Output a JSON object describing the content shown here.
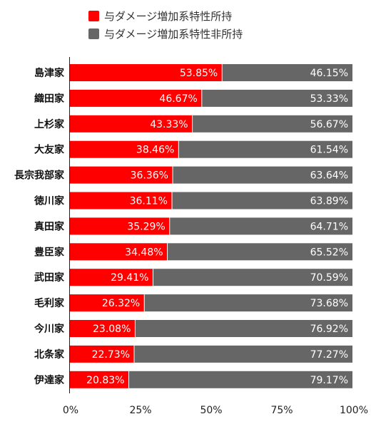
{
  "chart_data": {
    "type": "bar",
    "orientation": "horizontal",
    "stacked": true,
    "normalized": true,
    "title": "",
    "xlabel": "",
    "ylabel": "",
    "xlim": [
      0,
      100
    ],
    "grid": false,
    "legend_position": "top",
    "categories": [
      "島津家",
      "織田家",
      "上杉家",
      "大友家",
      "長宗我部家",
      "徳川家",
      "真田家",
      "豊臣家",
      "武田家",
      "毛利家",
      "今川家",
      "北条家",
      "伊達家"
    ],
    "series": [
      {
        "name": "与ダメージ増加系特性所持",
        "color": "#ff0000",
        "values": [
          53.85,
          46.67,
          43.33,
          38.46,
          36.36,
          36.11,
          35.29,
          34.48,
          29.41,
          26.32,
          23.08,
          22.73,
          20.83
        ],
        "labels": [
          "53.85%",
          "46.67%",
          "43.33%",
          "38.46%",
          "36.36%",
          "36.11%",
          "35.29%",
          "34.48%",
          "29.41%",
          "26.32%",
          "23.08%",
          "22.73%",
          "20.83%"
        ]
      },
      {
        "name": "与ダメージ増加系特性非所持",
        "color": "#666666",
        "values": [
          46.15,
          53.33,
          56.67,
          61.54,
          63.64,
          63.89,
          64.71,
          65.52,
          70.59,
          73.68,
          76.92,
          77.27,
          79.17
        ],
        "labels": [
          "46.15%",
          "53.33%",
          "56.67%",
          "61.54%",
          "63.64%",
          "63.89%",
          "64.71%",
          "65.52%",
          "70.59%",
          "73.68%",
          "76.92%",
          "77.27%",
          "79.17%"
        ]
      }
    ],
    "x_ticks": [
      {
        "value": 0,
        "label": "0%"
      },
      {
        "value": 25,
        "label": "25%"
      },
      {
        "value": 50,
        "label": "50%"
      },
      {
        "value": 75,
        "label": "75%"
      },
      {
        "value": 100,
        "label": "100%"
      }
    ]
  }
}
